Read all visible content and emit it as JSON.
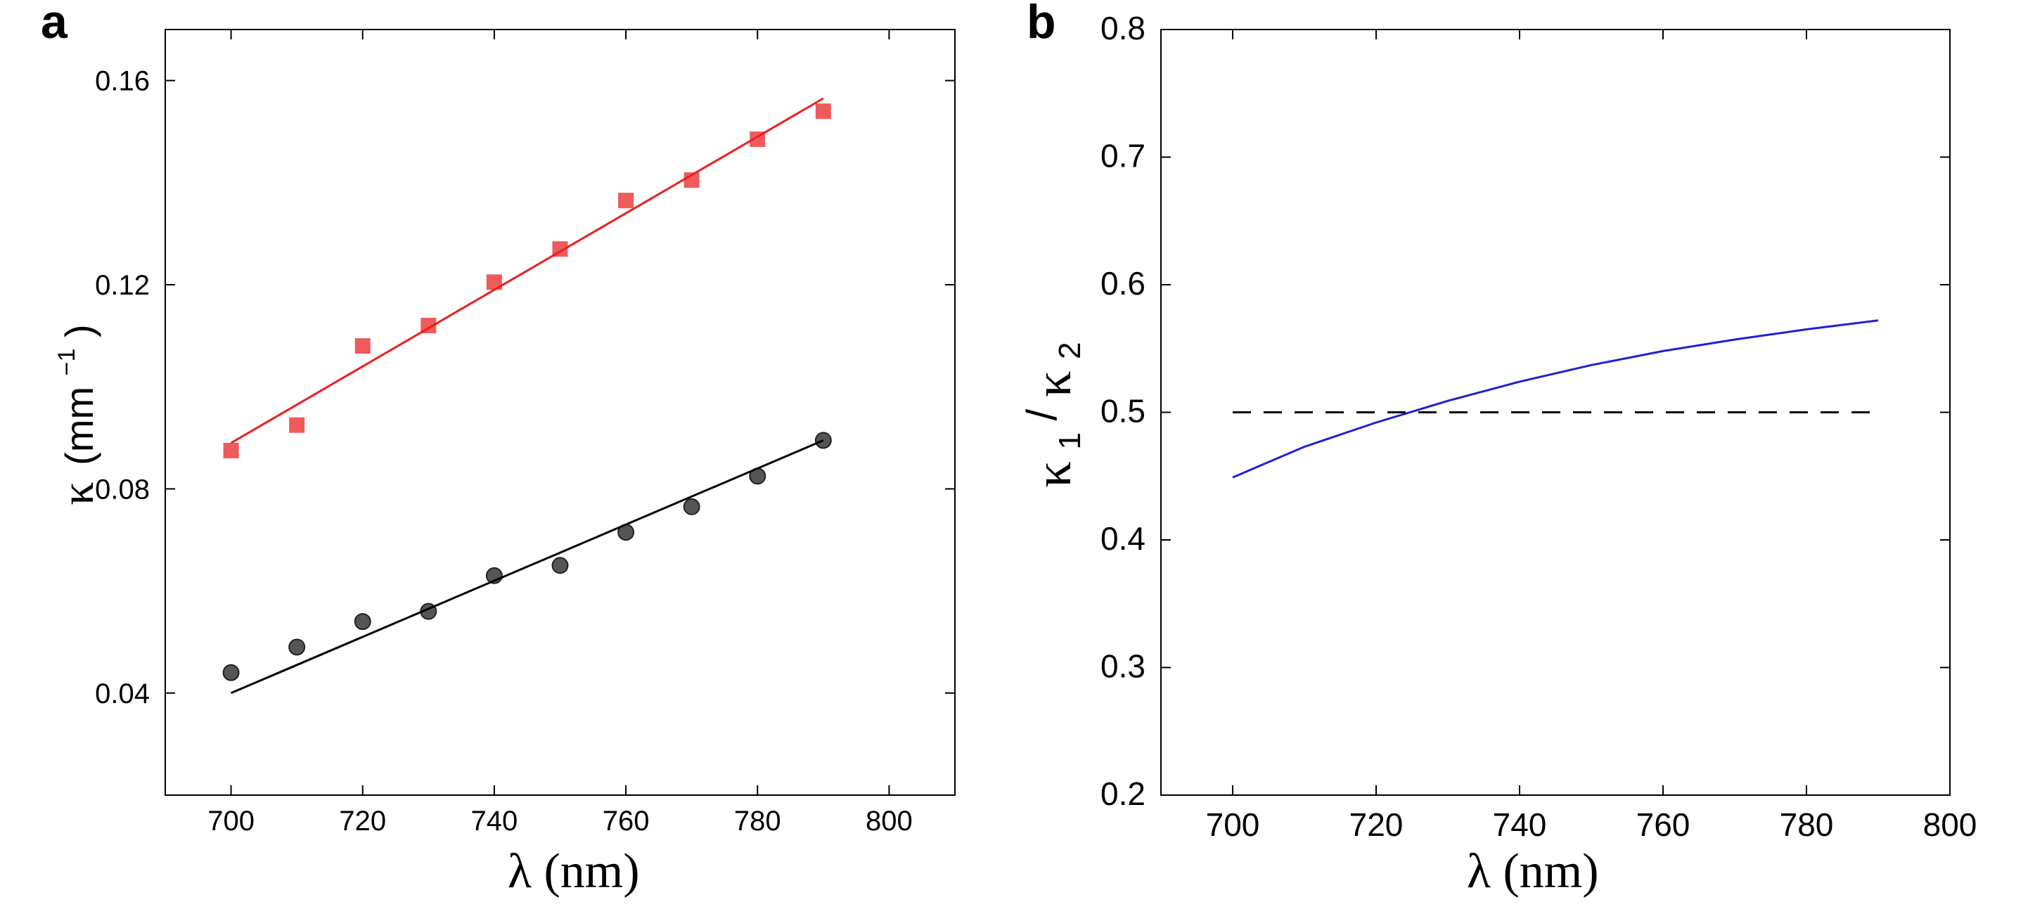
{
  "chart_data": [
    {
      "panel": "a",
      "type": "scatter",
      "title": "",
      "xlabel": "λ (nm)",
      "ylabel_symbol": "κ",
      "ylabel_unit_open": "(mm",
      "ylabel_unit_exp": "−1",
      "ylabel_unit_close": ")",
      "xlim": [
        690,
        810
      ],
      "ylim": [
        0.02,
        0.17
      ],
      "xticks": [
        700,
        720,
        740,
        760,
        780,
        800
      ],
      "yticks": [
        0.04,
        0.08,
        0.12,
        0.16
      ],
      "xtick_labels": [
        "700",
        "720",
        "740",
        "760",
        "780",
        "800"
      ],
      "ytick_labels": [
        "0.04",
        "0.08",
        "0.12",
        "0.16"
      ],
      "grid": false,
      "series": [
        {
          "name": "red squares",
          "marker": "square",
          "color": "#f05a5a",
          "x": [
            700,
            710,
            720,
            730,
            740,
            750,
            760,
            770,
            780,
            790
          ],
          "y": [
            0.0875,
            0.0925,
            0.108,
            0.112,
            0.1205,
            0.127,
            0.1365,
            0.1405,
            0.1485,
            0.154
          ]
        },
        {
          "name": "red fit",
          "line": "solid",
          "color": "#e8201e",
          "x": [
            700,
            790
          ],
          "y": [
            0.089,
            0.1565
          ]
        },
        {
          "name": "black circles",
          "marker": "circle",
          "color": "#555555",
          "x": [
            700,
            710,
            720,
            730,
            740,
            750,
            760,
            770,
            780,
            790
          ],
          "y": [
            0.044,
            0.049,
            0.054,
            0.056,
            0.063,
            0.065,
            0.0715,
            0.0765,
            0.0825,
            0.0895
          ]
        },
        {
          "name": "black fit",
          "line": "solid",
          "color": "#000000",
          "x": [
            700,
            790
          ],
          "y": [
            0.04,
            0.0895
          ]
        }
      ]
    },
    {
      "panel": "b",
      "type": "line",
      "title": "",
      "xlabel": "λ (nm)",
      "ylabel_num": "κ",
      "ylabel_num_sub": "1",
      "ylabel_den": "κ",
      "ylabel_den_sub": "2",
      "xlim": [
        690,
        800
      ],
      "ylim": [
        0.2,
        0.8
      ],
      "xticks": [
        700,
        720,
        740,
        760,
        780,
        800
      ],
      "yticks": [
        0.2,
        0.3,
        0.4,
        0.5,
        0.6,
        0.7,
        0.8
      ],
      "xtick_labels": [
        "700",
        "720",
        "740",
        "760",
        "780",
        "800"
      ],
      "ytick_labels": [
        "0.2",
        "0.3",
        "0.4",
        "0.5",
        "0.6",
        "0.7",
        "0.8"
      ],
      "grid": false,
      "series": [
        {
          "name": "ratio",
          "line": "solid",
          "color": "#1f1fd8",
          "x": [
            700,
            710,
            720,
            730,
            740,
            750,
            760,
            770,
            780,
            790
          ],
          "y": [
            0.449,
            0.473,
            0.492,
            0.509,
            0.524,
            0.537,
            0.548,
            0.557,
            0.565,
            0.572
          ]
        },
        {
          "name": "threshold",
          "line": "dashed",
          "color": "#000000",
          "x": [
            700,
            790
          ],
          "y": [
            0.5,
            0.5
          ]
        }
      ]
    }
  ]
}
